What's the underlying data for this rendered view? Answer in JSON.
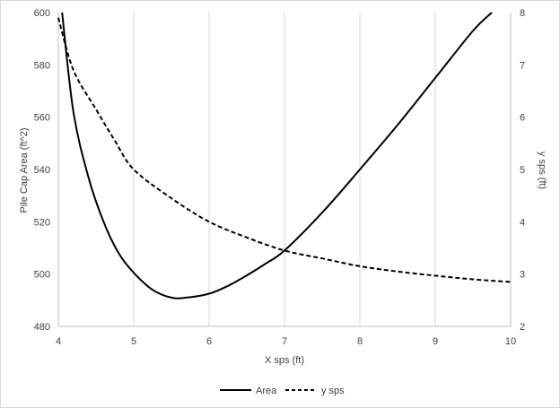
{
  "chart_data": {
    "type": "line",
    "title": "",
    "xlabel": "X sps (ft)",
    "ylabel": "Pile Cap Area  (ft^2)",
    "y2label": "y sps (ft)",
    "xlim": [
      4,
      10
    ],
    "ylim": [
      480,
      600
    ],
    "y2lim": [
      2,
      8
    ],
    "x_ticks": [
      "4",
      "5",
      "6",
      "7",
      "8",
      "9",
      "10"
    ],
    "y_ticks": [
      "480",
      "500",
      "520",
      "540",
      "560",
      "580",
      "600"
    ],
    "y2_ticks": [
      "2",
      "3",
      "4",
      "5",
      "6",
      "7",
      "8"
    ],
    "grid": "vertical",
    "legend_position": "bottom",
    "series": [
      {
        "name": "Area",
        "axis": "left",
        "style": "solid",
        "color": "#000000",
        "x": [
          4.05,
          4.2,
          4.4,
          4.6,
          4.8,
          5.0,
          5.25,
          5.5,
          5.7,
          6.0,
          6.25,
          6.5,
          6.75,
          7.0,
          7.5,
          8.0,
          8.5,
          9.0,
          9.5,
          9.75
        ],
        "y": [
          600,
          562,
          537,
          520,
          508,
          500.5,
          494,
          491,
          491,
          492.5,
          495.5,
          499.5,
          504,
          509,
          523.5,
          540,
          557,
          575,
          593,
          600
        ]
      },
      {
        "name": "y sps",
        "axis": "right",
        "style": "dashed",
        "color": "#000000",
        "x": [
          4.0,
          4.2,
          4.5,
          4.75,
          5.0,
          5.5,
          6.0,
          6.5,
          7.0,
          7.5,
          8.0,
          8.5,
          9.0,
          9.5,
          10.0
        ],
        "y": [
          7.9,
          6.9,
          6.15,
          5.55,
          5.0,
          4.45,
          4.0,
          3.7,
          3.45,
          3.3,
          3.15,
          3.05,
          2.97,
          2.9,
          2.85
        ]
      }
    ]
  }
}
